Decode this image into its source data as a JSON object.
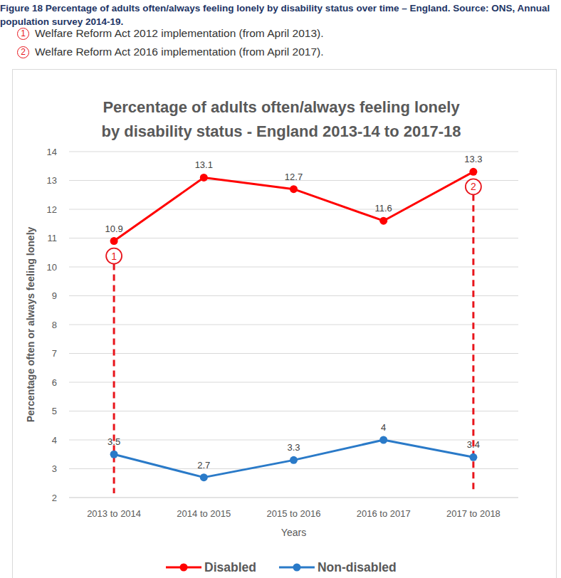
{
  "caption": "Figure 18 Percentage of adults often/always feeling lonely by disability status over time – England. Source: ONS, Annual population survey 2014-19.",
  "chart_data": {
    "type": "line",
    "title": "Percentage of adults often/always feeling lonely by disability status - England 2013-14 to 2017-18",
    "x_label": "Years",
    "y_label": "Percentage often or always feeling lonely",
    "categories": [
      "2013 to 2014",
      "2014 to 2015",
      "2015 to 2016",
      "2016 to 2017",
      "2017 to 2018"
    ],
    "series": [
      {
        "name": "Disabled",
        "color": "#ff0000",
        "marker": "circle",
        "line_style": "solid",
        "values": [
          10.9,
          13.1,
          12.7,
          11.6,
          13.3
        ]
      },
      {
        "name": "Non-disabled",
        "color": "#2a7ac8",
        "marker": "circle",
        "line_style": "solid",
        "values": [
          3.5,
          2.7,
          3.3,
          4,
          3.4
        ]
      }
    ],
    "ylim": [
      2,
      14
    ],
    "yticks": [
      2,
      3,
      4,
      5,
      6,
      7,
      8,
      9,
      10,
      11,
      12,
      13,
      14
    ],
    "grid": true,
    "data_labels": true,
    "legend": "bottom",
    "annotations": [
      {
        "label": "1",
        "text": "Welfare Reform Act 2012 implementation (from April 2013).",
        "category": "2013 to 2014"
      },
      {
        "label": "2",
        "text": "Welfare Reform Act 2016 implementation (from April 2017).",
        "category": "2017 to 2018"
      }
    ]
  }
}
